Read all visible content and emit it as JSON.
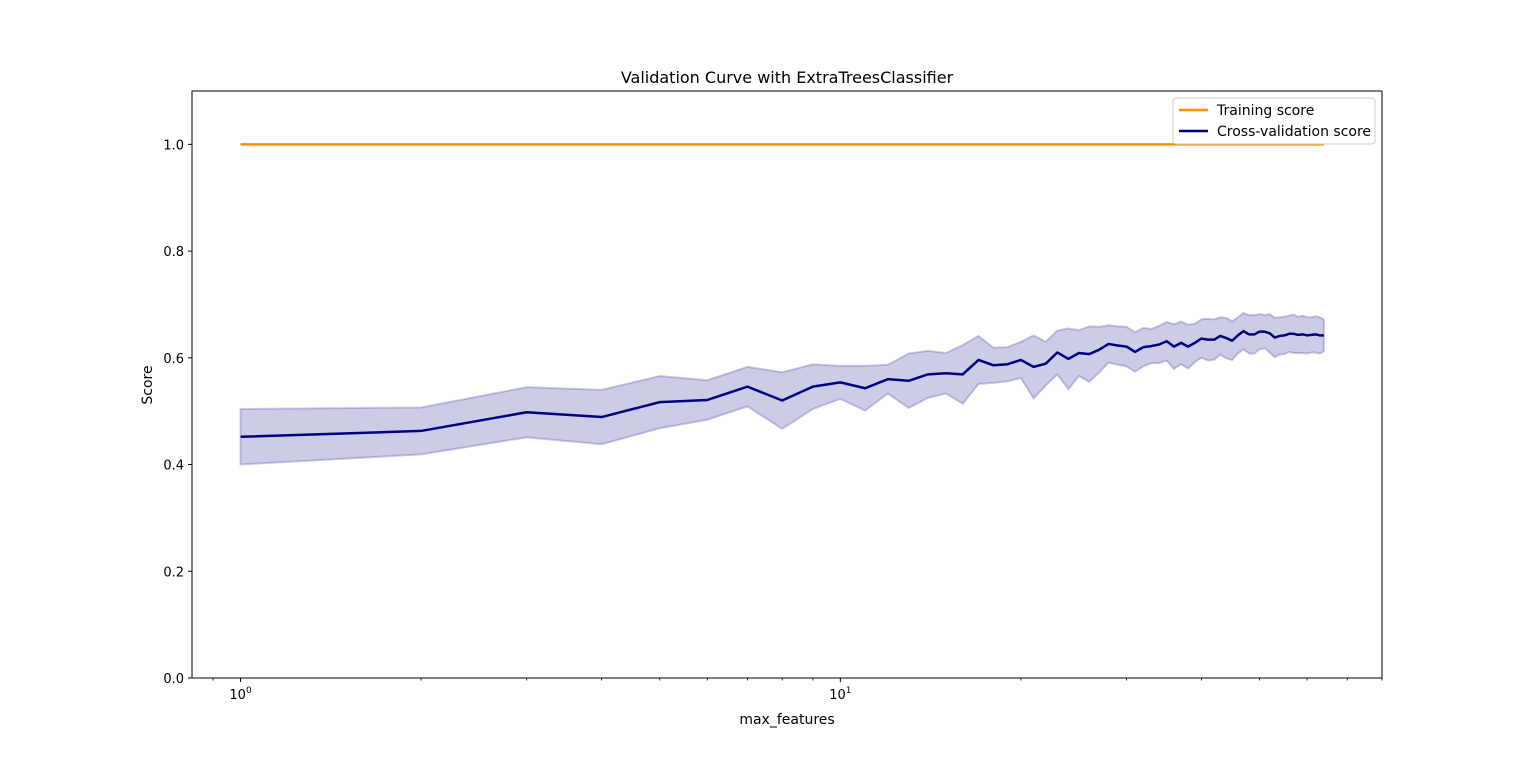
{
  "chart_data": {
    "type": "line",
    "title": "Validation Curve with ExtraTreesClassifier",
    "xlabel": "max_features",
    "ylabel": "Score",
    "xscale": "log",
    "xlim": [
      0.83,
      80
    ],
    "ylim": [
      0.0,
      1.1
    ],
    "grid": false,
    "legend_position": "top-right",
    "x_ticks": [
      {
        "value": 1,
        "base": "10",
        "exp": "0"
      },
      {
        "value": 10,
        "base": "10",
        "exp": "1"
      }
    ],
    "y_ticks": [
      {
        "value": 0.0,
        "label": "0.0"
      },
      {
        "value": 0.2,
        "label": "0.2"
      },
      {
        "value": 0.4,
        "label": "0.4"
      },
      {
        "value": 0.6,
        "label": "0.6"
      },
      {
        "value": 0.8,
        "label": "0.8"
      },
      {
        "value": 1.0,
        "label": "1.0"
      }
    ],
    "x": [
      1,
      2,
      3,
      4,
      5,
      6,
      7,
      8,
      9,
      10,
      11,
      12,
      13,
      14,
      15,
      16,
      17,
      18,
      19,
      20,
      21,
      22,
      23,
      24,
      25,
      26,
      27,
      28,
      29,
      30,
      31,
      32,
      33,
      34,
      35,
      36,
      37,
      38,
      39,
      40,
      41,
      42,
      43,
      44,
      45,
      46,
      47,
      48,
      49,
      50,
      51,
      52,
      53,
      54,
      55,
      56,
      57,
      58,
      59,
      60,
      61,
      62,
      63,
      64
    ],
    "series": [
      {
        "name": "Training score",
        "color": "#ff8c00",
        "values": [
          1,
          1,
          1,
          1,
          1,
          1,
          1,
          1,
          1,
          1,
          1,
          1,
          1,
          1,
          1,
          1,
          1,
          1,
          1,
          1,
          1,
          1,
          1,
          1,
          1,
          1,
          1,
          1,
          1,
          1,
          1,
          1,
          1,
          1,
          1,
          1,
          1,
          1,
          1,
          1,
          1,
          1,
          1,
          1,
          1,
          1,
          1,
          1,
          1,
          1,
          1,
          1,
          1,
          1,
          1,
          1,
          1,
          1,
          1,
          1,
          1,
          1,
          1,
          1
        ],
        "std": [
          0,
          0,
          0,
          0,
          0,
          0,
          0,
          0,
          0,
          0,
          0,
          0,
          0,
          0,
          0,
          0,
          0,
          0,
          0,
          0,
          0,
          0,
          0,
          0,
          0,
          0,
          0,
          0,
          0,
          0,
          0,
          0,
          0,
          0,
          0,
          0,
          0,
          0,
          0,
          0,
          0,
          0,
          0,
          0,
          0,
          0,
          0,
          0,
          0,
          0,
          0,
          0,
          0,
          0,
          0,
          0,
          0,
          0,
          0,
          0,
          0,
          0,
          0,
          0
        ]
      },
      {
        "name": "Cross-validation score",
        "color": "#000080",
        "band_color": "#000080",
        "values": [
          0.452,
          0.463,
          0.498,
          0.489,
          0.517,
          0.521,
          0.546,
          0.52,
          0.546,
          0.554,
          0.543,
          0.56,
          0.557,
          0.569,
          0.571,
          0.569,
          0.596,
          0.586,
          0.588,
          0.596,
          0.583,
          0.589,
          0.61,
          0.598,
          0.609,
          0.607,
          0.615,
          0.626,
          0.623,
          0.621,
          0.611,
          0.62,
          0.622,
          0.625,
          0.631,
          0.621,
          0.628,
          0.621,
          0.628,
          0.636,
          0.634,
          0.634,
          0.641,
          0.637,
          0.632,
          0.642,
          0.65,
          0.644,
          0.644,
          0.649,
          0.649,
          0.646,
          0.638,
          0.641,
          0.642,
          0.645,
          0.645,
          0.643,
          0.644,
          0.642,
          0.643,
          0.644,
          0.642,
          0.642
        ],
        "std": [
          0.052,
          0.044,
          0.047,
          0.051,
          0.049,
          0.037,
          0.037,
          0.053,
          0.042,
          0.031,
          0.042,
          0.027,
          0.051,
          0.044,
          0.038,
          0.055,
          0.045,
          0.033,
          0.032,
          0.034,
          0.059,
          0.041,
          0.041,
          0.057,
          0.043,
          0.052,
          0.043,
          0.035,
          0.036,
          0.037,
          0.037,
          0.036,
          0.032,
          0.035,
          0.036,
          0.042,
          0.04,
          0.041,
          0.036,
          0.036,
          0.039,
          0.038,
          0.035,
          0.038,
          0.036,
          0.034,
          0.034,
          0.036,
          0.036,
          0.033,
          0.031,
          0.036,
          0.037,
          0.035,
          0.035,
          0.034,
          0.036,
          0.034,
          0.035,
          0.034,
          0.033,
          0.034,
          0.034,
          0.03
        ]
      }
    ]
  }
}
